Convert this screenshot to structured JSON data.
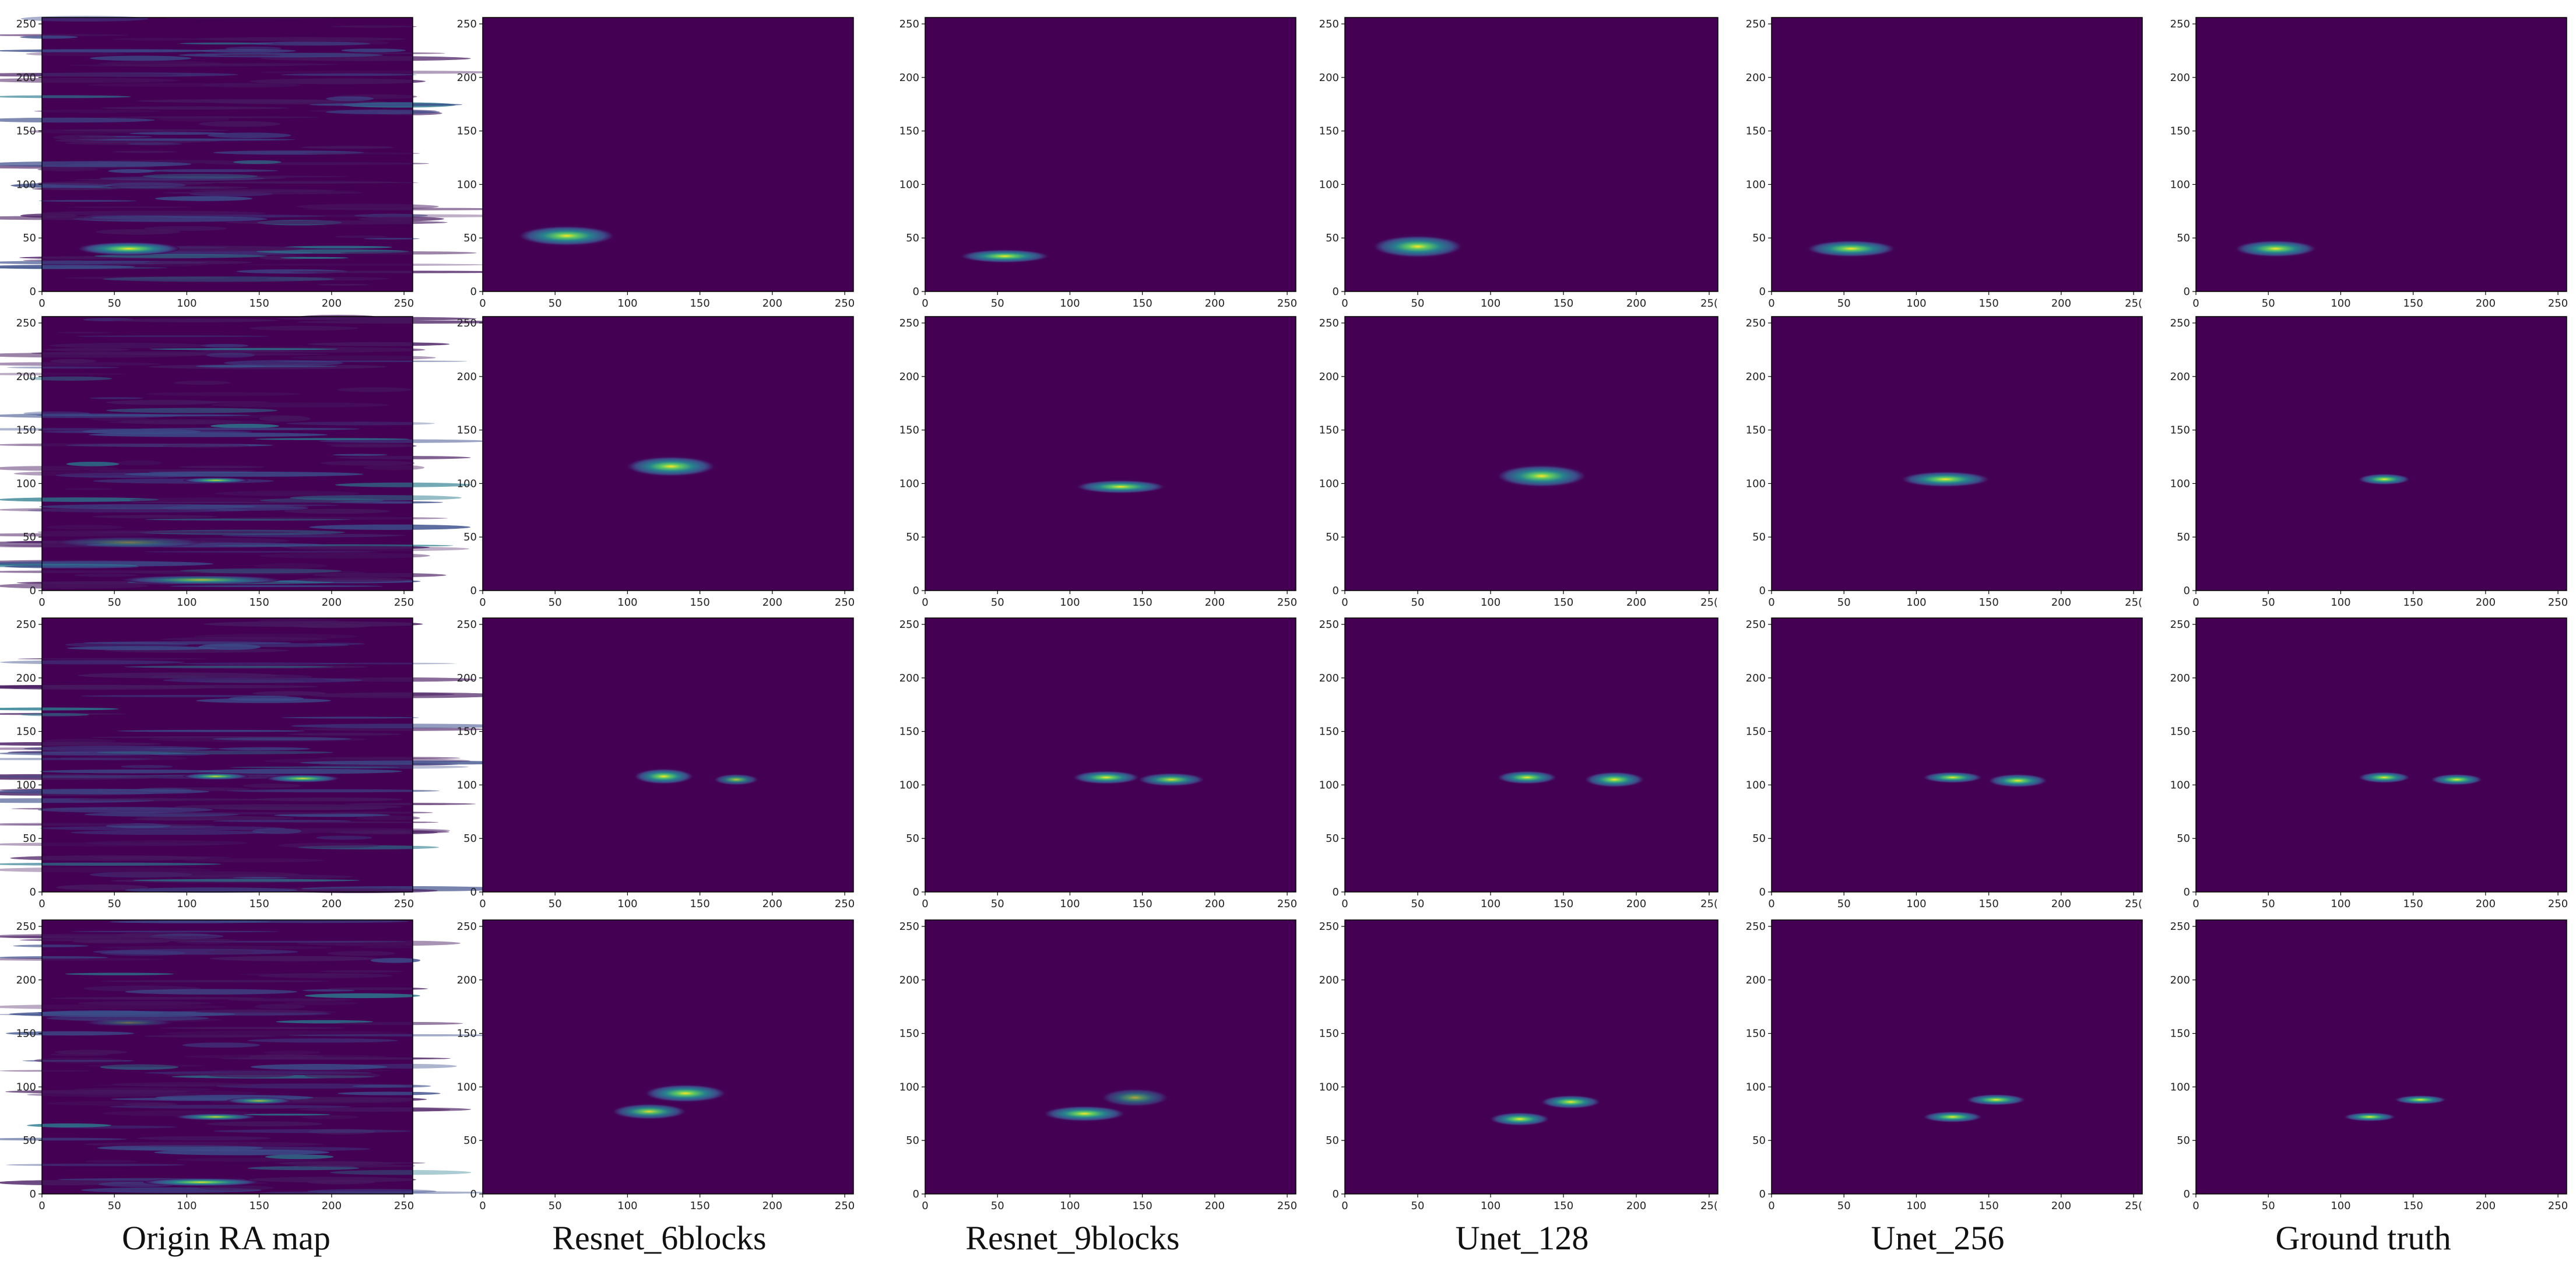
{
  "figure": {
    "columns": [
      {
        "key": "origin",
        "label": "Origin RA map"
      },
      {
        "key": "r6",
        "label": "Resnet_6blocks"
      },
      {
        "key": "r9",
        "label": "Resnet_9blocks"
      },
      {
        "key": "u128",
        "label": "Unet_128"
      },
      {
        "key": "u256",
        "label": "Unet_256"
      },
      {
        "key": "gt",
        "label": "Ground truth"
      }
    ]
  },
  "colors": {
    "background": "#440154",
    "noise_low": "#46195f",
    "noise_mid": "#3b4d8a",
    "noise_high": "#2a7b8e",
    "blob_outer": "#3d4a89",
    "blob_mid": "#26828e",
    "blob_inner": "#5ec962",
    "blob_core": "#fde725"
  },
  "chart_data": {
    "type": "heatmap",
    "colormap": "viridis",
    "axis_range": {
      "x": [
        0,
        256
      ],
      "y": [
        0,
        256
      ]
    },
    "x_ticks": [
      "0",
      "50",
      "100",
      "150",
      "200",
      "250"
    ],
    "y_ticks": [
      "0",
      "50",
      "100",
      "150",
      "200",
      "250"
    ],
    "x_ticks_u128": [
      "0",
      "50",
      "100",
      "150",
      "200",
      "25("
    ],
    "x_ticks_u256": [
      "0",
      "50",
      "100",
      "150",
      "200",
      "25("
    ],
    "rows": [
      {
        "origin": {
          "blobs": [
            {
              "cx": 60,
              "cy": 40,
              "w": 70,
              "h": 12,
              "i": 1.0
            }
          ]
        },
        "r6": {
          "blobs": [
            {
              "cx": 58,
              "cy": 52,
              "w": 65,
              "h": 18,
              "i": 1.0
            }
          ]
        },
        "r9": {
          "blobs": [
            {
              "cx": 55,
              "cy": 33,
              "w": 60,
              "h": 12,
              "i": 1.0
            }
          ]
        },
        "u128": {
          "blobs": [
            {
              "cx": 50,
              "cy": 42,
              "w": 60,
              "h": 20,
              "i": 1.0
            }
          ]
        },
        "u256": {
          "blobs": [
            {
              "cx": 55,
              "cy": 40,
              "w": 60,
              "h": 15,
              "i": 1.0
            }
          ]
        },
        "gt": {
          "blobs": [
            {
              "cx": 55,
              "cy": 40,
              "w": 55,
              "h": 15,
              "i": 1.0
            }
          ]
        }
      },
      {
        "origin": {
          "blobs": [
            {
              "cx": 120,
              "cy": 103,
              "w": 45,
              "h": 5,
              "i": 0.85
            },
            {
              "cx": 110,
              "cy": 10,
              "w": 110,
              "h": 8,
              "i": 0.7
            },
            {
              "cx": 60,
              "cy": 45,
              "w": 100,
              "h": 10,
              "i": 0.35
            }
          ]
        },
        "r6": {
          "blobs": [
            {
              "cx": 130,
              "cy": 116,
              "w": 60,
              "h": 18,
              "i": 1.0
            }
          ]
        },
        "r9": {
          "blobs": [
            {
              "cx": 135,
              "cy": 97,
              "w": 60,
              "h": 12,
              "i": 1.0
            }
          ]
        },
        "u128": {
          "blobs": [
            {
              "cx": 135,
              "cy": 107,
              "w": 60,
              "h": 20,
              "i": 1.0
            }
          ]
        },
        "u256": {
          "blobs": [
            {
              "cx": 120,
              "cy": 104,
              "w": 60,
              "h": 14,
              "i": 1.0
            }
          ]
        },
        "gt": {
          "blobs": [
            {
              "cx": 130,
              "cy": 104,
              "w": 35,
              "h": 10,
              "i": 1.0
            }
          ]
        }
      },
      {
        "origin": {
          "blobs": [
            {
              "cx": 120,
              "cy": 108,
              "w": 45,
              "h": 6,
              "i": 0.85
            },
            {
              "cx": 180,
              "cy": 106,
              "w": 50,
              "h": 7,
              "i": 0.9
            }
          ]
        },
        "r6": {
          "blobs": [
            {
              "cx": 125,
              "cy": 108,
              "w": 40,
              "h": 14,
              "i": 1.0
            },
            {
              "cx": 175,
              "cy": 105,
              "w": 30,
              "h": 10,
              "i": 0.75
            }
          ]
        },
        "r9": {
          "blobs": [
            {
              "cx": 125,
              "cy": 107,
              "w": 45,
              "h": 12,
              "i": 1.0
            },
            {
              "cx": 170,
              "cy": 105,
              "w": 45,
              "h": 12,
              "i": 0.9
            }
          ]
        },
        "u128": {
          "blobs": [
            {
              "cx": 125,
              "cy": 107,
              "w": 40,
              "h": 12,
              "i": 1.0
            },
            {
              "cx": 185,
              "cy": 105,
              "w": 40,
              "h": 14,
              "i": 1.0
            }
          ]
        },
        "u256": {
          "blobs": [
            {
              "cx": 125,
              "cy": 107,
              "w": 40,
              "h": 10,
              "i": 1.0
            },
            {
              "cx": 170,
              "cy": 104,
              "w": 40,
              "h": 12,
              "i": 1.0
            }
          ]
        },
        "gt": {
          "blobs": [
            {
              "cx": 130,
              "cy": 107,
              "w": 35,
              "h": 10,
              "i": 1.0
            },
            {
              "cx": 180,
              "cy": 105,
              "w": 35,
              "h": 10,
              "i": 1.0
            }
          ]
        }
      },
      {
        "origin": {
          "blobs": [
            {
              "cx": 120,
              "cy": 72,
              "w": 55,
              "h": 6,
              "i": 0.85
            },
            {
              "cx": 150,
              "cy": 87,
              "w": 45,
              "h": 6,
              "i": 0.7
            },
            {
              "cx": 110,
              "cy": 11,
              "w": 80,
              "h": 7,
              "i": 0.95
            },
            {
              "cx": 60,
              "cy": 160,
              "w": 60,
              "h": 6,
              "i": 0.35
            }
          ]
        },
        "r6": {
          "blobs": [
            {
              "cx": 115,
              "cy": 77,
              "w": 50,
              "h": 14,
              "i": 0.9
            },
            {
              "cx": 140,
              "cy": 94,
              "w": 55,
              "h": 16,
              "i": 1.0
            }
          ]
        },
        "r9": {
          "blobs": [
            {
              "cx": 110,
              "cy": 75,
              "w": 55,
              "h": 14,
              "i": 1.0
            },
            {
              "cx": 145,
              "cy": 90,
              "w": 45,
              "h": 16,
              "i": 0.6
            }
          ]
        },
        "u128": {
          "blobs": [
            {
              "cx": 120,
              "cy": 70,
              "w": 40,
              "h": 12,
              "i": 1.0
            },
            {
              "cx": 155,
              "cy": 86,
              "w": 40,
              "h": 12,
              "i": 1.0
            }
          ]
        },
        "u256": {
          "blobs": [
            {
              "cx": 125,
              "cy": 72,
              "w": 40,
              "h": 10,
              "i": 1.0
            },
            {
              "cx": 155,
              "cy": 88,
              "w": 40,
              "h": 10,
              "i": 1.0
            }
          ]
        },
        "gt": {
          "blobs": [
            {
              "cx": 120,
              "cy": 72,
              "w": 35,
              "h": 8,
              "i": 1.0
            },
            {
              "cx": 155,
              "cy": 88,
              "w": 35,
              "h": 8,
              "i": 1.0
            }
          ]
        }
      }
    ]
  }
}
